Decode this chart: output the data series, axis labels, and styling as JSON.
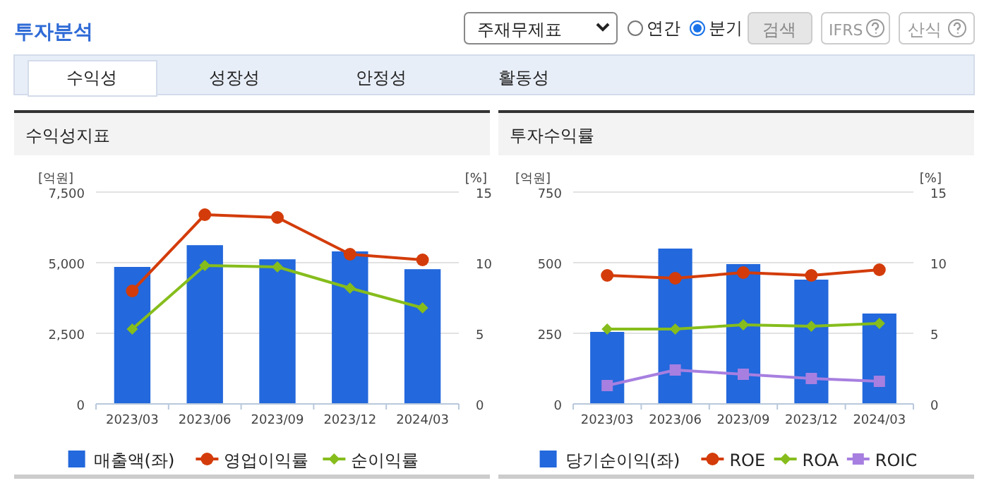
{
  "chart_data": [
    {
      "type": "other",
      "title": "투자분석",
      "annotations": [
        "주재무제표",
        "연간",
        "분기",
        "검색",
        "IFRS",
        "산식",
        "수익성",
        "성장성",
        "안정성",
        "활동성"
      ]
    },
    {
      "type": "bar",
      "title": "수익성지표",
      "ylabel": "[억원]",
      "y2label": "[%]",
      "categories": [
        "2023/03",
        "2023/06",
        "2023/09",
        "2023/12",
        "2024/03"
      ],
      "series": [
        {
          "name": "매출액(좌)",
          "type": "bar",
          "color": "#2368dc",
          "values": [
            4850,
            5620,
            5120,
            5400,
            4770
          ]
        },
        {
          "name": "영업이익률",
          "type": "line",
          "axis": "y2",
          "marker": "circle",
          "color": "#d33c0a",
          "values": [
            8.0,
            13.4,
            13.2,
            10.6,
            10.2
          ]
        },
        {
          "name": "순이익률",
          "type": "line",
          "axis": "y2",
          "marker": "diamond",
          "color": "#86bd1c",
          "values": [
            5.3,
            9.8,
            9.7,
            8.2,
            6.8
          ]
        }
      ],
      "ylim": [
        0,
        7500
      ],
      "yticks": [
        0,
        {
          "value": 2500,
          "label": "2,500"
        },
        {
          "value": 5000,
          "label": "5,000"
        },
        {
          "value": 7500,
          "label": "7,500"
        }
      ],
      "y2lim": [
        0,
        15
      ],
      "y2ticks": [
        0,
        5,
        10,
        15
      ],
      "grid": "y",
      "legend": "bottom"
    },
    {
      "type": "bar",
      "title": "투자수익률",
      "ylabel": "[억원]",
      "y2label": "[%]",
      "categories": [
        "2023/03",
        "2023/06",
        "2023/09",
        "2023/12",
        "2024/03"
      ],
      "series": [
        {
          "name": "당기순이익(좌)",
          "type": "bar",
          "color": "#2368dc",
          "values": [
            255,
            550,
            495,
            440,
            320
          ]
        },
        {
          "name": "ROE",
          "type": "line",
          "axis": "y2",
          "marker": "circle",
          "color": "#d33c0a",
          "values": [
            9.1,
            8.9,
            9.3,
            9.1,
            9.5
          ]
        },
        {
          "name": "ROA",
          "type": "line",
          "axis": "y2",
          "marker": "diamond",
          "color": "#86bd1c",
          "values": [
            5.3,
            5.3,
            5.6,
            5.5,
            5.7
          ]
        },
        {
          "name": "ROIC",
          "type": "line",
          "axis": "y2",
          "marker": "square",
          "color": "#a77fe0",
          "values": [
            1.3,
            2.4,
            2.1,
            1.8,
            1.6
          ]
        }
      ],
      "ylim": [
        0,
        750
      ],
      "yticks": [
        0,
        250,
        500,
        750
      ],
      "y2lim": [
        0,
        15
      ],
      "y2ticks": [
        0,
        5,
        10,
        15
      ],
      "grid": "y",
      "legend": "bottom"
    }
  ]
}
